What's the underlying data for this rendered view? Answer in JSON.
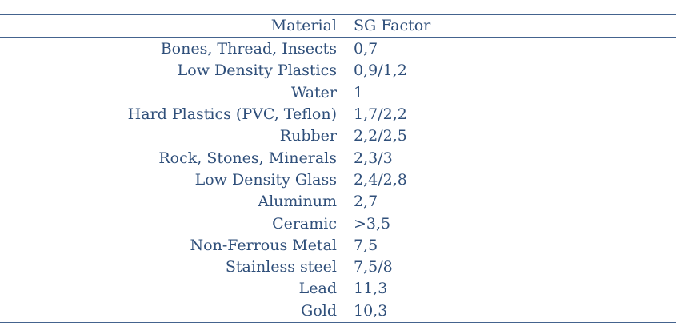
{
  "table": {
    "headers": {
      "material": "Material",
      "sg_factor": "SG Factor"
    },
    "rows": [
      {
        "material": "Bones, Thread, Insects",
        "sg": "0,7"
      },
      {
        "material": "Low Density Plastics",
        "sg": "0,9/1,2"
      },
      {
        "material": "Water",
        "sg": "1"
      },
      {
        "material": "Hard Plastics (PVC, Teflon)",
        "sg": "1,7/2,2"
      },
      {
        "material": "Rubber",
        "sg": "2,2/2,5"
      },
      {
        "material": "Rock, Stones, Minerals",
        "sg": "2,3/3"
      },
      {
        "material": "Low Density Glass",
        "sg": "2,4/2,8"
      },
      {
        "material": "Aluminum",
        "sg": "2,7"
      },
      {
        "material": "Ceramic",
        "sg": ">3,5"
      },
      {
        "material": "Non-Ferrous Metal",
        "sg": "7,5"
      },
      {
        "material": "Stainless steel",
        "sg": "7,5/8"
      },
      {
        "material": "Lead",
        "sg": "11,3"
      },
      {
        "material": "Gold",
        "sg": "10,3"
      }
    ]
  }
}
